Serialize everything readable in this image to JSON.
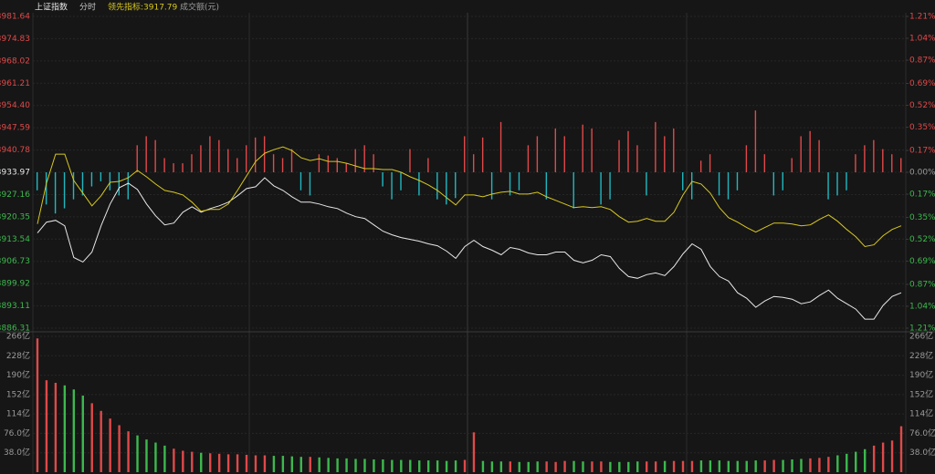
{
  "chart_data": [
    {
      "type": "line",
      "title": "上证指数",
      "mode": "分时",
      "indicator": "领先指标:3917.79",
      "ylim": [
        3886.31,
        3981.64
      ],
      "yticks": [
        3886.31,
        3893.11,
        3899.92,
        3906.73,
        3913.54,
        3920.35,
        3927.16,
        3933.97,
        3940.78,
        3947.59,
        {
          "value": 3954.4,
          "label": "3954.40"
        },
        3961.21,
        3968.02,
        3974.83,
        3981.64
      ],
      "y2lim": [
        -1.21,
        1.21
      ],
      "y2ticks": [
        {
          "value": -1.21,
          "label": "1.21%"
        },
        {
          "value": -1.04,
          "label": "1.04%"
        },
        {
          "value": -0.87,
          "label": "0.87%"
        },
        {
          "value": -0.69,
          "label": "0.69%"
        },
        {
          "value": -0.52,
          "label": "0.52%"
        },
        {
          "value": -0.35,
          "label": "0.35%"
        },
        {
          "value": -0.17,
          "label": "0.17%"
        },
        {
          "value": 0,
          "label": "0.00%"
        },
        {
          "value": 0.17,
          "label": "0.17%"
        },
        {
          "value": 0.35,
          "label": "0.35%"
        },
        {
          "value": 0.52,
          "label": "0.52%"
        },
        {
          "value": 0.69,
          "label": "0.69%"
        },
        {
          "value": 0.87,
          "label": "0.87%"
        },
        {
          "value": 1.04,
          "label": "1.04%"
        },
        {
          "value": 1.21,
          "label": "1.21%"
        }
      ],
      "up_color": "#e0494a",
      "down_color": "#20b8c0",
      "grid": true,
      "series": [
        {
          "type": "line",
          "color": "#e8e8e8",
          "values": [
            3915.4,
            3918.73,
            3919.28,
            3917.62,
            3907.92,
            3906.54,
            3909.59,
            3917.62,
            3924.27,
            3929.26,
            3930.64,
            3928.71,
            3924.27,
            3920.67,
            3917.9,
            3918.45,
            3921.78,
            3923.44,
            3921.78,
            3922.89,
            3923.72,
            3924.83,
            3926.77,
            3928.98,
            3929.54,
            3932.31,
            3929.81,
            3928.43,
            3926.49,
            3924.83,
            3924.83,
            3924.27,
            3923.44,
            3922.89,
            3921.5,
            3920.39,
            3919.84,
            3917.9,
            3915.96,
            3914.85,
            3914.02,
            3913.46,
            3912.91,
            3912.08,
            3911.52,
            3909.86,
            3907.65,
            3911.25,
            3913.19,
            3911.25,
            3910.14,
            3908.75,
            3910.97,
            3910.42,
            3909.31,
            3908.75,
            3908.75,
            3909.59,
            3909.59,
            3907.09,
            3906.26,
            3907.09,
            3908.75,
            3908.2,
            3904.6,
            3902.1,
            3901.55,
            3902.66,
            3903.21,
            3902.38,
            3905.15,
            3909.03,
            3912.08,
            3910.42,
            3905.15,
            3902.1,
            3900.72,
            3897.12,
            3895.45,
            3892.68,
            3894.62,
            3896.01,
            3895.73,
            3895.18,
            3893.79,
            3894.34,
            3896.28,
            3897.95,
            3895.45,
            3893.79,
            3892.13,
            3889.08,
            3889.08,
            3893.24,
            3896.01,
            3897.12
          ]
        },
        {
          "type": "line",
          "color": "#d8c820",
          "values": [
            3918.18,
            3930.64,
            3939.51,
            3939.51,
            3931.48,
            3927.6,
            3923.72,
            3926.77,
            3930.92,
            3931.2,
            3932.31,
            3934.52,
            3932.58,
            3930.37,
            3928.43,
            3927.87,
            3927.04,
            3924.83,
            3922.05,
            3922.61,
            3922.61,
            3924.27,
            3928.43,
            3932.86,
            3937.3,
            3939.79,
            3940.9,
            3941.73,
            3940.62,
            3938.4,
            3937.57,
            3938.13,
            3937.3,
            3937.3,
            3936.74,
            3935.91,
            3935.08,
            3935.08,
            3934.8,
            3934.8,
            3933.97,
            3932.58,
            3931.48,
            3930.09,
            3928.43,
            3926.21,
            3923.99,
            3927.04,
            3927.04,
            3926.49,
            3927.32,
            3927.87,
            3928.15,
            3927.32,
            3927.32,
            3927.87,
            3926.49,
            3925.38,
            3924.27,
            3923.16,
            3923.44,
            3923.16,
            3923.44,
            3922.61,
            3920.39,
            3918.73,
            3919.01,
            3919.84,
            3919.01,
            3919.01,
            3921.78,
            3927.04,
            3931.2,
            3930.37,
            3927.6,
            3923.16,
            3920.11,
            3918.73,
            3917.07,
            3915.68,
            3917.07,
            3918.45,
            3918.45,
            3918.18,
            3917.62,
            3917.9,
            3919.56,
            3920.95,
            3919.01,
            3916.51,
            3914.3,
            3911.25,
            3911.8,
            3914.57,
            3916.51,
            3917.62
          ]
        },
        {
          "type": "bar",
          "axis": "y2",
          "values": [
            -0.14,
            -0.25,
            -0.32,
            -0.28,
            -0.21,
            -0.18,
            -0.11,
            -0.07,
            -0.14,
            -0.18,
            -0.21,
            0.21,
            0.28,
            0.25,
            0.11,
            0.07,
            0.07,
            0.14,
            0.21,
            0.28,
            0.25,
            0.18,
            0.11,
            0.21,
            0.27,
            0.28,
            0.14,
            0.11,
            0.18,
            -0.14,
            -0.18,
            0.14,
            0.13,
            0.11,
            0.07,
            0.18,
            0.21,
            0.14,
            -0.11,
            -0.21,
            -0.14,
            0.18,
            -0.18,
            0.11,
            -0.21,
            -0.25,
            -0.2,
            0.28,
            0.14,
            0.27,
            -0.21,
            0.39,
            -0.18,
            -0.14,
            0.21,
            0.28,
            -0.21,
            0.34,
            0.28,
            -0.28,
            0.37,
            0.34,
            -0.25,
            -0.21,
            0.25,
            0.32,
            0.21,
            -0.18,
            0.39,
            0.28,
            0.34,
            -0.14,
            -0.21,
            0.09,
            0.14,
            -0.18,
            -0.21,
            -0.14,
            0.21,
            0.48,
            0.14,
            -0.18,
            -0.14,
            0.11,
            0.28,
            0.32,
            0.25,
            -0.21,
            -0.18,
            -0.14,
            0.14,
            0.21,
            0.25,
            0.18,
            0.14,
            0.11
          ]
        }
      ]
    },
    {
      "type": "bar",
      "title": "成交额(元)",
      "ylim": [
        0,
        266
      ],
      "yticks": [
        {
          "value": 266,
          "label": "266亿"
        },
        {
          "value": 228,
          "label": "228亿"
        },
        {
          "value": 190,
          "label": "190亿"
        },
        {
          "value": 152,
          "label": "152亿"
        },
        {
          "value": 114,
          "label": "114亿"
        },
        {
          "value": 76,
          "label": "76.0亿"
        },
        {
          "value": 38,
          "label": "38.0亿"
        }
      ],
      "up_color": "#e0494a",
      "down_color": "#3cb94e",
      "values": [
        262,
        180,
        175,
        170,
        162,
        150,
        135,
        120,
        105,
        92,
        80,
        72,
        64,
        58,
        52,
        46,
        42,
        40,
        38,
        37,
        36,
        35,
        35,
        34,
        33,
        33,
        32,
        32,
        31,
        30,
        30,
        29,
        28,
        27,
        27,
        26,
        26,
        25,
        25,
        24,
        24,
        24,
        23,
        23,
        23,
        22,
        23,
        24,
        78,
        22,
        21,
        21,
        21,
        20,
        20,
        21,
        21,
        20,
        22,
        22,
        21,
        21,
        21,
        20,
        20,
        20,
        21,
        21,
        21,
        22,
        22,
        22,
        22,
        23,
        23,
        23,
        22,
        22,
        22,
        23,
        23,
        24,
        24,
        25,
        26,
        27,
        28,
        30,
        33,
        36,
        40,
        45,
        52,
        58,
        62,
        90
      ]
    }
  ]
}
